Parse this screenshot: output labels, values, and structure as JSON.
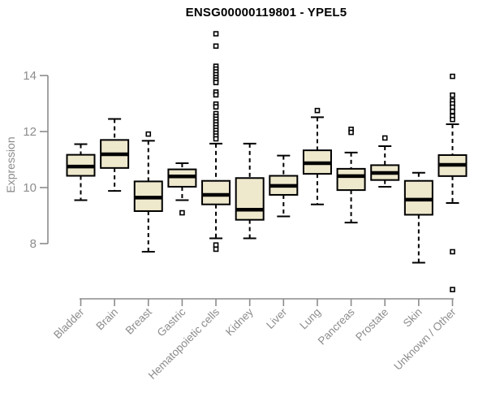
{
  "chart_data": {
    "type": "boxplot",
    "title": "ENSG00000119801 - YPEL5",
    "ylabel": "Expression",
    "yticks": [
      8,
      10,
      12,
      14
    ],
    "ylim": [
      8,
      14
    ],
    "grid": false,
    "categories": [
      "Bladder",
      "Brain",
      "Breast",
      "Gastric",
      "Hematopoietic cells",
      "Kidney",
      "Liver",
      "Lung",
      "Pancreas",
      "Prostate",
      "Skin",
      "Unknown / Other"
    ],
    "boxes": [
      {
        "category": "Bladder",
        "low": 9.55,
        "q1": 10.42,
        "median": 10.75,
        "q3": 11.17,
        "high": 11.55,
        "outliers": []
      },
      {
        "category": "Brain",
        "low": 9.88,
        "q1": 10.7,
        "median": 11.19,
        "q3": 11.7,
        "high": 12.45,
        "outliers": []
      },
      {
        "category": "Breast",
        "low": 7.71,
        "q1": 9.16,
        "median": 9.64,
        "q3": 10.22,
        "high": 11.67,
        "outliers": [
          11.91
        ]
      },
      {
        "category": "Gastric",
        "low": 9.55,
        "q1": 10.03,
        "median": 10.4,
        "q3": 10.65,
        "high": 10.87,
        "outliers": [
          9.1
        ]
      },
      {
        "category": "Hematopoietic cells",
        "low": 8.19,
        "q1": 9.4,
        "median": 9.74,
        "q3": 10.24,
        "high": 11.57,
        "outliers": [
          15.49,
          15.05,
          14.33,
          14.23,
          14.13,
          14.03,
          13.93,
          13.84,
          13.75,
          13.41,
          13.31,
          12.98,
          12.88,
          12.64,
          12.54,
          12.44,
          12.34,
          12.24,
          12.14,
          12.04,
          11.94,
          11.84,
          11.74,
          7.95,
          7.8
        ]
      },
      {
        "category": "Kidney",
        "low": 8.19,
        "q1": 8.85,
        "median": 9.21,
        "q3": 10.34,
        "high": 11.57,
        "outliers": []
      },
      {
        "category": "Liver",
        "low": 8.97,
        "q1": 9.74,
        "median": 10.06,
        "q3": 10.42,
        "high": 11.14,
        "outliers": []
      },
      {
        "category": "Lung",
        "low": 9.4,
        "q1": 10.49,
        "median": 10.87,
        "q3": 11.33,
        "high": 12.51,
        "outliers": [
          12.75
        ]
      },
      {
        "category": "Pancreas",
        "low": 8.75,
        "q1": 9.91,
        "median": 10.41,
        "q3": 10.67,
        "high": 11.25,
        "outliers": [
          12.08,
          11.97
        ]
      },
      {
        "category": "Prostate",
        "low": 10.03,
        "q1": 10.27,
        "median": 10.52,
        "q3": 10.8,
        "high": 11.48,
        "outliers": [
          11.77
        ]
      },
      {
        "category": "Skin",
        "low": 7.32,
        "q1": 9.03,
        "median": 9.57,
        "q3": 10.24,
        "high": 10.53,
        "outliers": []
      },
      {
        "category": "Unknown / Other",
        "low": 9.45,
        "q1": 10.41,
        "median": 10.81,
        "q3": 11.16,
        "high": 12.26,
        "outliers": [
          13.97,
          13.3,
          13.1,
          12.99,
          12.87,
          12.72,
          12.55,
          12.43,
          7.71,
          6.36
        ]
      }
    ],
    "colors": {
      "box_fill": "#EEE8CD",
      "box_stroke": "#000000",
      "median": "#000000",
      "whisker": "#000000",
      "outlier_stroke": "#000000",
      "outlier_fill": "#FFFFFF",
      "axis": "#8C8C8C",
      "tick_label": "#8C8C8C",
      "title": "#000000",
      "background": "#FFFFFF"
    }
  }
}
